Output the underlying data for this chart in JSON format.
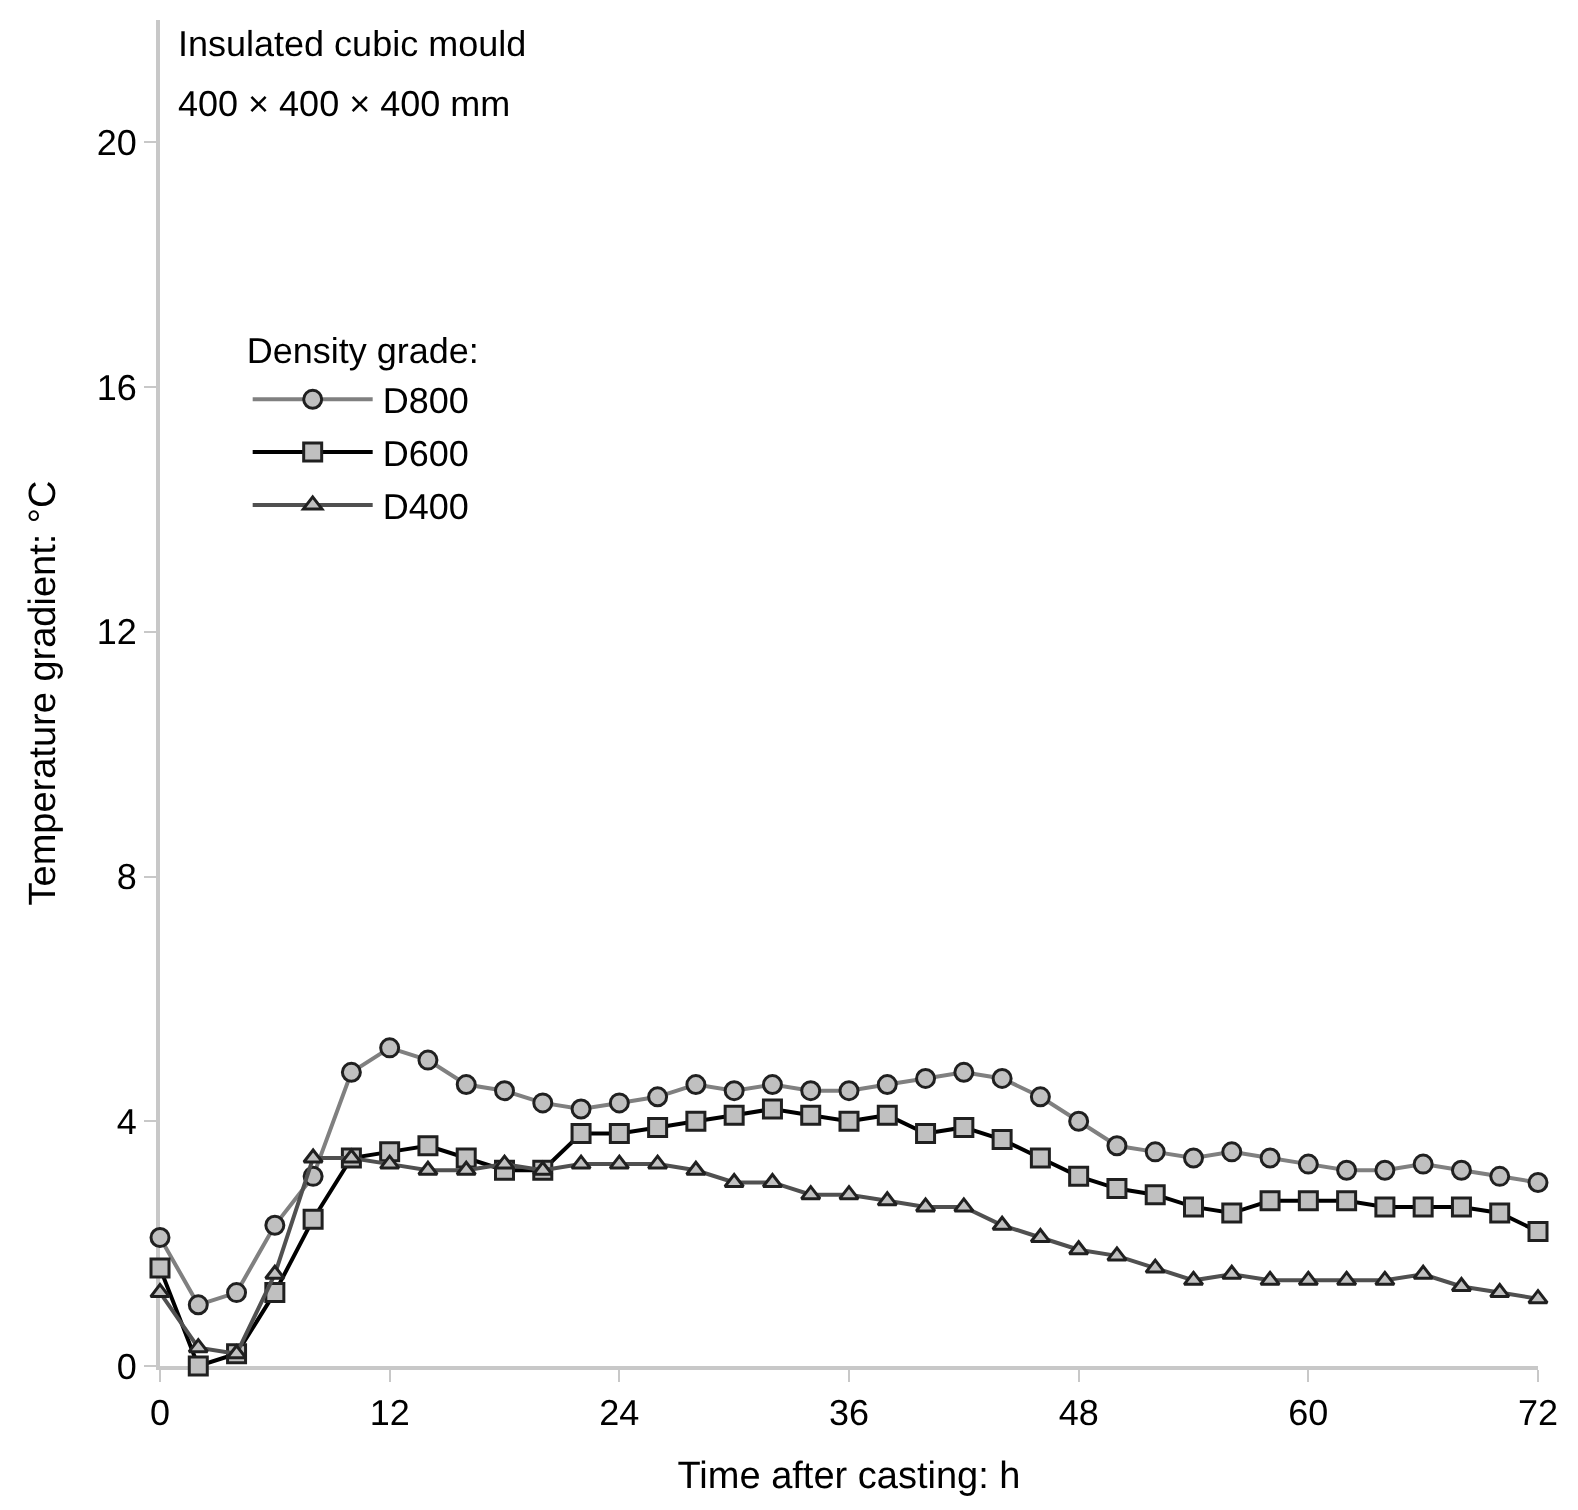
{
  "chart_data": {
    "type": "line",
    "xlabel": "Time after casting: h",
    "ylabel": "Temperature gradient: °C",
    "legend_title": "Density grade:",
    "annotations": [
      "Insulated cubic mould",
      "400 × 400 × 400 mm"
    ],
    "x": [
      0,
      2,
      4,
      6,
      8,
      10,
      12,
      14,
      16,
      18,
      20,
      22,
      24,
      26,
      28,
      30,
      32,
      34,
      36,
      38,
      40,
      42,
      44,
      46,
      48,
      50,
      52,
      54,
      56,
      58,
      60,
      62,
      64,
      66,
      68,
      70,
      72
    ],
    "series": [
      {
        "name": "D800",
        "color": "#808080",
        "marker": "circle",
        "values": [
          2.1,
          1.0,
          1.2,
          2.3,
          3.1,
          4.8,
          5.2,
          5.0,
          4.6,
          4.5,
          4.3,
          4.2,
          4.3,
          4.4,
          4.6,
          4.5,
          4.6,
          4.5,
          4.5,
          4.6,
          4.7,
          4.8,
          4.7,
          4.4,
          4.0,
          3.6,
          3.5,
          3.4,
          3.5,
          3.4,
          3.3,
          3.2,
          3.2,
          3.3,
          3.2,
          3.1,
          3.0
        ]
      },
      {
        "name": "D600",
        "color": "#000000",
        "marker": "square",
        "values": [
          1.6,
          0.0,
          0.2,
          1.2,
          2.4,
          3.4,
          3.5,
          3.6,
          3.4,
          3.2,
          3.2,
          3.8,
          3.8,
          3.9,
          4.0,
          4.1,
          4.2,
          4.1,
          4.0,
          4.1,
          3.8,
          3.9,
          3.7,
          3.4,
          3.1,
          2.9,
          2.8,
          2.6,
          2.5,
          2.7,
          2.7,
          2.7,
          2.6,
          2.6,
          2.6,
          2.5,
          2.2
        ]
      },
      {
        "name": "D400",
        "color": "#505050",
        "marker": "triangle",
        "values": [
          1.2,
          0.3,
          0.2,
          1.5,
          3.4,
          3.4,
          3.3,
          3.2,
          3.2,
          3.3,
          3.2,
          3.3,
          3.3,
          3.3,
          3.2,
          3.0,
          3.0,
          2.8,
          2.8,
          2.7,
          2.6,
          2.6,
          2.3,
          2.1,
          1.9,
          1.8,
          1.6,
          1.4,
          1.5,
          1.4,
          1.4,
          1.4,
          1.4,
          1.5,
          1.3,
          1.2,
          1.1
        ]
      }
    ],
    "xlim": [
      0,
      72
    ],
    "xticks": [
      0,
      12,
      24,
      36,
      48,
      60,
      72
    ],
    "ylim": [
      0,
      22
    ],
    "yticks": [
      0,
      4,
      8,
      12,
      16,
      20
    ],
    "grid": false,
    "legend": "top left",
    "line_style": "solid"
  }
}
